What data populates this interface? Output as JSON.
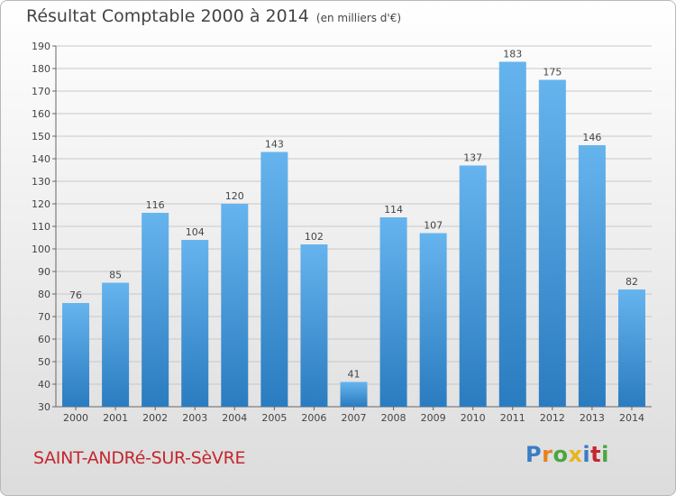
{
  "header": {
    "title": "Résultat Comptable 2000 à 2014",
    "subtitle": "(en milliers d'€)"
  },
  "footer": {
    "commune": "SAINT-ANDRé-SUR-SèVRE",
    "logo_letters": [
      "P",
      "r",
      "o",
      "x",
      "i",
      "t",
      "i"
    ],
    "logo_colors": [
      "#3a7cc6",
      "#e8821e",
      "#4aa640",
      "#e8b51e",
      "#3a7cc6",
      "#c4262e",
      "#4aa640"
    ]
  },
  "colors": {
    "bar_light": "#66b4ee",
    "bar_dark": "#2a7cc0",
    "grid": "#c8c8c8",
    "text": "#444444",
    "commune": "#c4262e"
  },
  "chart_data": {
    "type": "bar",
    "title": "Résultat Comptable 2000 à 2014",
    "subtitle": "(en milliers d'€)",
    "categories": [
      "2000",
      "2001",
      "2002",
      "2003",
      "2004",
      "2005",
      "2006",
      "2007",
      "2008",
      "2009",
      "2010",
      "2011",
      "2012",
      "2013",
      "2014"
    ],
    "values": [
      76,
      85,
      116,
      104,
      120,
      143,
      102,
      41,
      114,
      107,
      137,
      183,
      175,
      146,
      82
    ],
    "ylim": [
      30,
      190
    ],
    "ytick_step": 10,
    "grid": true,
    "show_data_labels": true,
    "xlabel": "",
    "ylabel": ""
  }
}
